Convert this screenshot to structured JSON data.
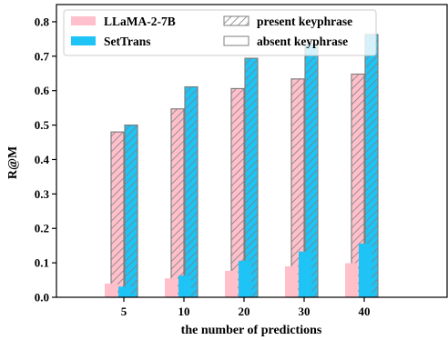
{
  "chart_data": {
    "type": "bar",
    "categories": [
      "5",
      "10",
      "20",
      "30",
      "40"
    ],
    "xlabel": "the number of predictions",
    "ylabel": "R@M",
    "ylim": [
      0,
      0.85
    ],
    "yticks": [
      "0.0",
      "0.1",
      "0.2",
      "0.3",
      "0.4",
      "0.5",
      "0.6",
      "0.7",
      "0.8"
    ],
    "grid": false,
    "legend": {
      "placement": "top-left",
      "models": [
        {
          "name": "LLaMA-2-7B",
          "color": "#ffc0cb"
        },
        {
          "name": "SetTrans",
          "color": "#1ec4f5"
        }
      ],
      "keyphrase_types": [
        {
          "name": "present keyphrase",
          "pattern": "hatched"
        },
        {
          "name": "absent keyphrase",
          "pattern": "plain"
        }
      ]
    },
    "series": [
      {
        "name": "LLaMA-2-7B present keyphrase",
        "model": "LLaMA-2-7B",
        "kind": "present",
        "values": [
          0.48,
          0.547,
          0.606,
          0.634,
          0.648
        ]
      },
      {
        "name": "SetTrans present keyphrase",
        "model": "SetTrans",
        "kind": "present",
        "values": [
          0.5,
          0.611,
          0.694,
          0.735,
          0.763
        ]
      },
      {
        "name": "LLaMA-2-7B absent keyphrase",
        "model": "LLaMA-2-7B",
        "kind": "absent",
        "values": [
          0.04,
          0.055,
          0.077,
          0.09,
          0.099
        ]
      },
      {
        "name": "SetTrans absent keyphrase",
        "model": "SetTrans",
        "kind": "absent",
        "values": [
          0.031,
          0.063,
          0.106,
          0.133,
          0.156
        ]
      }
    ]
  }
}
